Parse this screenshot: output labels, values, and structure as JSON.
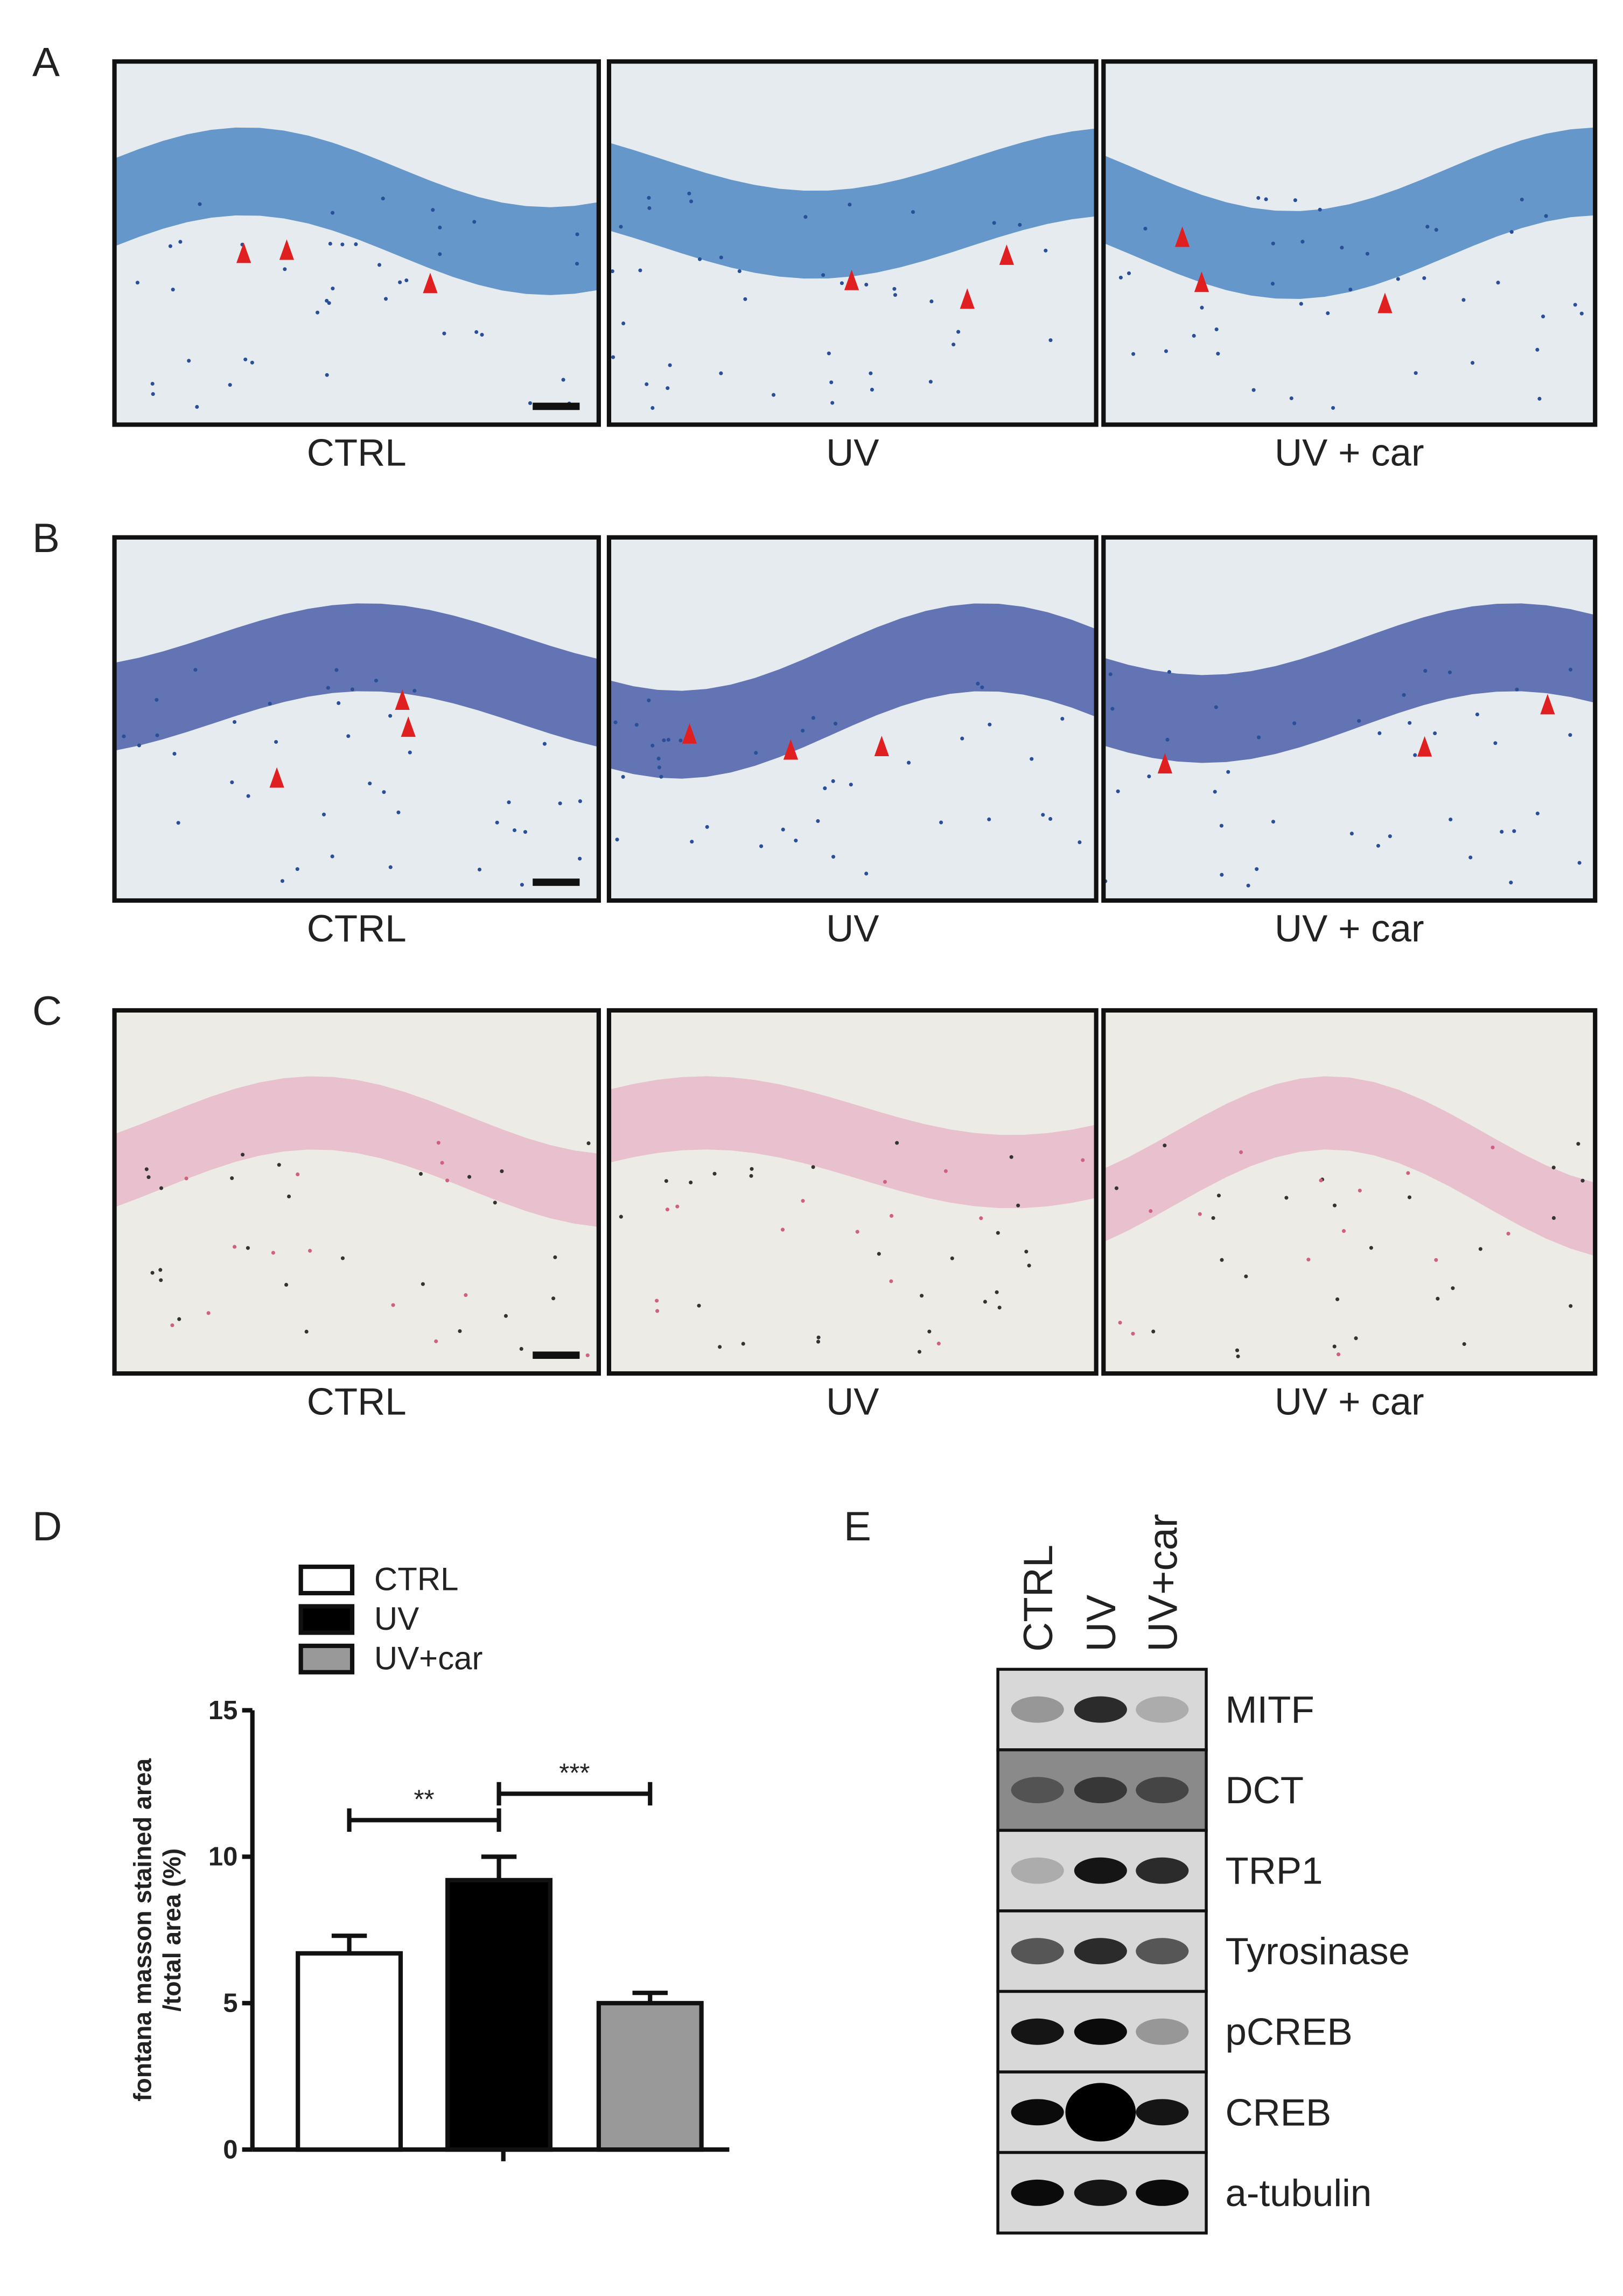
{
  "panels": [
    {
      "label": "A",
      "captions": [
        "CTRL",
        "UV",
        "UV + car"
      ]
    },
    {
      "label": "B",
      "captions": [
        "CTRL",
        "UV",
        "UV + car"
      ]
    },
    {
      "label": "C",
      "captions": [
        "CTRL",
        "UV",
        "UV + car"
      ]
    }
  ],
  "chart_data": {
    "type": "bar",
    "panel_label": "D",
    "ylabel": [
      "fontana masson stained area",
      "/total area (%)"
    ],
    "categories": [
      null
    ],
    "series": [
      {
        "name": "CTRL",
        "color": "#ffffff",
        "values": [
          6.7
        ],
        "errors": [
          0.6
        ]
      },
      {
        "name": "UV",
        "color": "#000000",
        "values": [
          9.2
        ],
        "errors": [
          0.8
        ]
      },
      {
        "name": "UV+car",
        "color": "#999999",
        "values": [
          5.0
        ],
        "errors": [
          0.35
        ]
      }
    ],
    "annotations": [
      {
        "text": "**",
        "between": [
          0,
          1
        ]
      },
      {
        "text": "***",
        "between": [
          1,
          2
        ]
      }
    ],
    "ylim": [
      0,
      15
    ],
    "yticks": [
      0,
      5,
      10,
      15
    ]
  },
  "blot": {
    "panel_label": "E",
    "lanes": [
      "CTRL",
      "UV",
      "UV+car"
    ],
    "rows": [
      "MITF",
      "DCT",
      "TRP1",
      "Tyrosinase",
      "pCREB",
      "CREB",
      "a-tubulin"
    ]
  }
}
